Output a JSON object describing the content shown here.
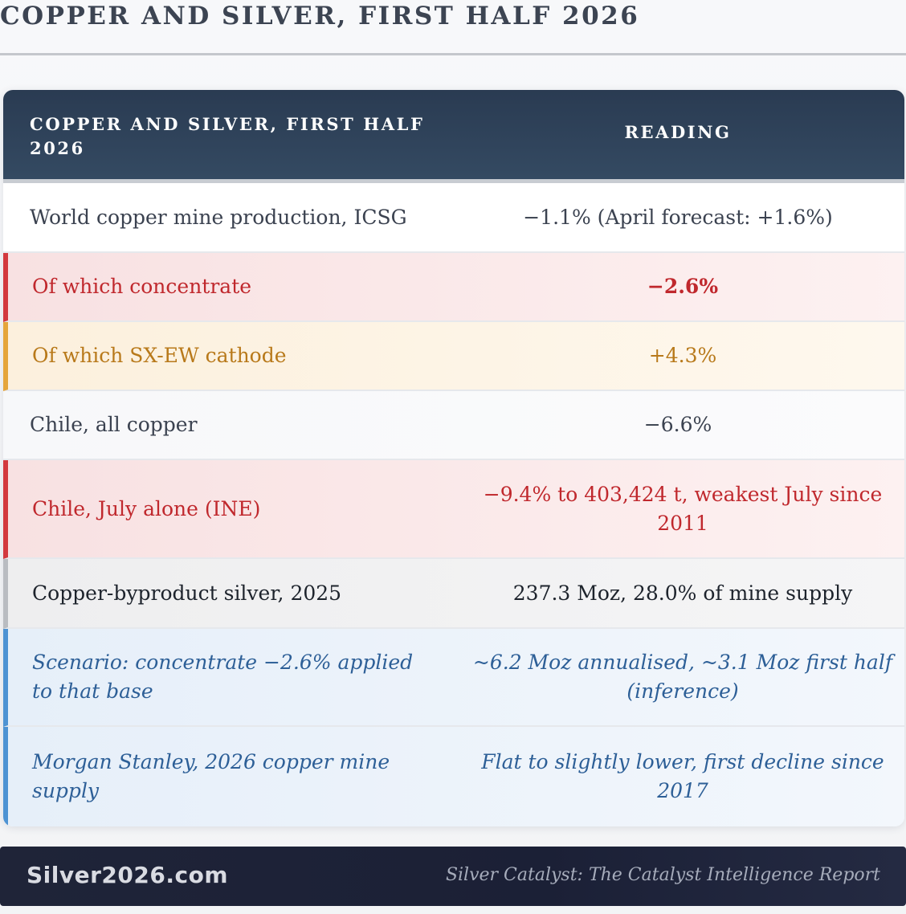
{
  "page_title": "COPPER AND SILVER, FIRST HALF 2026",
  "table": {
    "header": {
      "col1": "COPPER AND SILVER, FIRST HALF 2026",
      "col2": "READING"
    },
    "rows": [
      {
        "label": "World copper mine production, ICSG",
        "value": "−1.1% (April forecast: +1.6%)",
        "style": "neutral"
      },
      {
        "label": "Of which concentrate",
        "value": "−2.6%",
        "style": "red"
      },
      {
        "label": "Of which SX-EW cathode",
        "value": "+4.3%",
        "style": "amber"
      },
      {
        "label": "Chile, all copper",
        "value": "−6.6%",
        "style": "neutral"
      },
      {
        "label": "Chile, July alone (INE)",
        "value": "−9.4% to 403,424 t, weakest July since 2011",
        "style": "red"
      },
      {
        "label": "Copper-byproduct silver, 2025",
        "value": "237.3 Moz, 28.0% of mine supply",
        "style": "gray"
      },
      {
        "label": "Scenario: concentrate −2.6% applied to that base",
        "value": "~6.2 Moz annualised, ~3.1 Moz first half (inference)",
        "style": "blue"
      },
      {
        "label": "Morgan Stanley, 2026 copper mine supply",
        "value": "Flat to slightly lower, first decline since 2017",
        "style": "blue"
      }
    ]
  },
  "footer": {
    "brand": "Silver2026.com",
    "tagline": "Silver Catalyst: The Catalyst Intelligence Report"
  },
  "colors": {
    "header_bg": "#2a3b52",
    "red_accent": "#d3393e",
    "amber_accent": "#e5a53b",
    "blue_accent": "#4e93d3",
    "footer_bg": "#1f2438"
  }
}
